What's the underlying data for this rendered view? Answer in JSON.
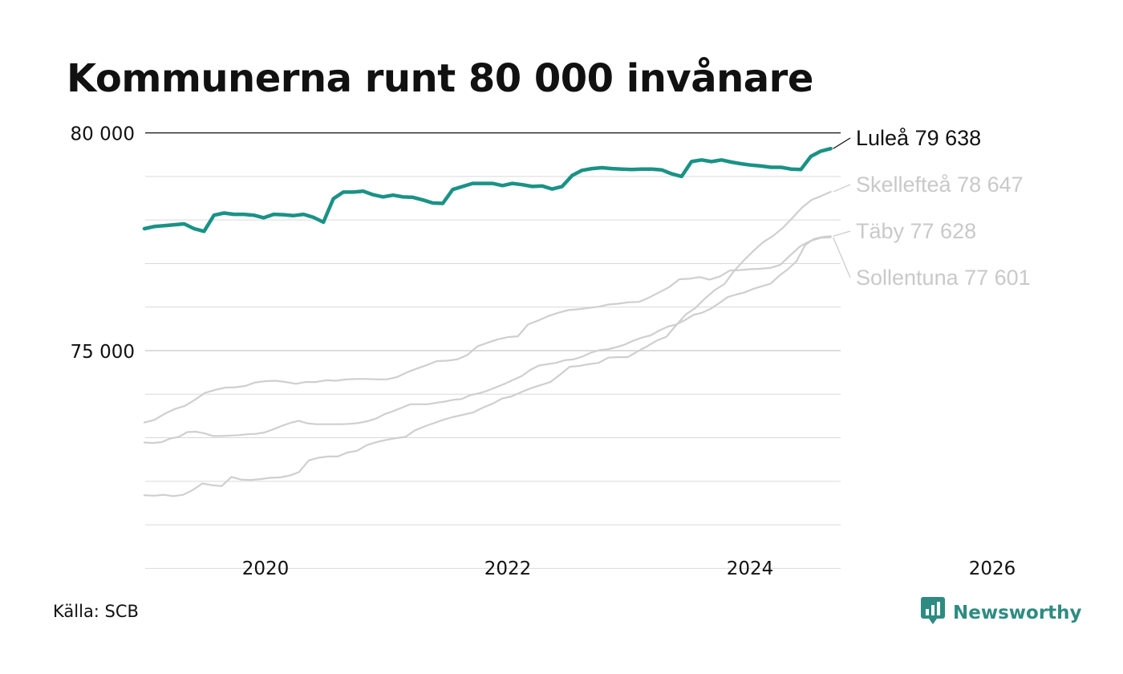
{
  "title": "Kommunerna runt 80 000 invånare",
  "source": "Källa: SCB",
  "brand": {
    "name": "Newsworthy",
    "icon": "newsworthy-logo-icon",
    "color": "#2e8b82"
  },
  "chart_data": {
    "type": "line",
    "title": "Kommunerna runt 80 000 invånare",
    "xlabel": "",
    "ylabel": "",
    "xlim": [
      "2019-01",
      "2026-07"
    ],
    "ylim": [
      70000,
      80000
    ],
    "y_ticks": [
      {
        "value": 75000,
        "label": "75 000"
      },
      {
        "value": 80000,
        "label": "80 000"
      }
    ],
    "x_ticks": [
      {
        "value": "2020-01",
        "label": "2020"
      },
      {
        "value": "2022-01",
        "label": "2022"
      },
      {
        "value": "2024-01",
        "label": "2024"
      },
      {
        "value": "2026-01",
        "label": "2026"
      }
    ],
    "gridlines": [
      71000,
      72000,
      73000,
      74000,
      75000,
      76000,
      77000,
      78000,
      79000,
      80000
    ],
    "legend": "right end labels",
    "start": "2019-01",
    "series": [
      {
        "name": "Luleå",
        "label": "Luleå 79 638",
        "color": "#1a9286",
        "highlight": true,
        "values": [
          77800,
          77850,
          77870,
          77890,
          77910,
          77800,
          77740,
          78110,
          78160,
          78130,
          78130,
          78110,
          78050,
          78130,
          78120,
          78100,
          78130,
          78060,
          77950,
          78490,
          78640,
          78640,
          78660,
          78580,
          78530,
          78570,
          78530,
          78520,
          78460,
          78390,
          78380,
          78700,
          78770,
          78840,
          78840,
          78840,
          78790,
          78840,
          78810,
          78770,
          78780,
          78710,
          78770,
          79020,
          79140,
          79180,
          79200,
          79180,
          79170,
          79160,
          79170,
          79170,
          79150,
          79060,
          79000,
          79340,
          79380,
          79340,
          79380,
          79330,
          79290,
          79260,
          79240,
          79210,
          79210,
          79170,
          79160,
          79460,
          79580,
          79638
        ]
      },
      {
        "name": "Skellefteå",
        "label": "Skellefteå 78 647",
        "color": "#cfcfcf",
        "values": [
          71680,
          71670,
          71690,
          71660,
          71690,
          71800,
          71950,
          71910,
          71890,
          72100,
          72040,
          72030,
          72050,
          72080,
          72090,
          72130,
          72210,
          72480,
          72540,
          72570,
          72570,
          72660,
          72700,
          72830,
          72900,
          72950,
          72990,
          73020,
          73170,
          73260,
          73340,
          73420,
          73480,
          73530,
          73580,
          73690,
          73780,
          73900,
          73950,
          74050,
          74140,
          74210,
          74280,
          74450,
          74630,
          74650,
          74690,
          74720,
          74840,
          74850,
          74850,
          74980,
          75100,
          75230,
          75320,
          75580,
          75830,
          75980,
          76200,
          76390,
          76530,
          76830,
          77070,
          77290,
          77490,
          77630,
          77810,
          78040,
          78280,
          78460,
          78550,
          78647
        ]
      },
      {
        "name": "Täby",
        "label": "Täby 77 628",
        "color": "#cfcfcf",
        "values": [
          72890,
          72880,
          72900,
          72980,
          73020,
          73130,
          73140,
          73100,
          73040,
          73040,
          73050,
          73060,
          73080,
          73090,
          73120,
          73190,
          73270,
          73340,
          73390,
          73330,
          73310,
          73310,
          73310,
          73310,
          73320,
          73340,
          73380,
          73440,
          73540,
          73610,
          73690,
          73770,
          73770,
          73770,
          73800,
          73830,
          73870,
          73890,
          73980,
          74020,
          74080,
          74160,
          74240,
          74330,
          74420,
          74560,
          74660,
          74690,
          74720,
          74780,
          74800,
          74860,
          74950,
          75010,
          75030,
          75080,
          75140,
          75230,
          75300,
          75350,
          75460,
          75550,
          75600,
          75700,
          75820,
          75870,
          75960,
          76090,
          76230,
          76290,
          76340,
          76420,
          76480,
          76540,
          76720,
          76870,
          77050,
          77420,
          77560,
          77610,
          77628
        ]
      },
      {
        "name": "Sollentuna",
        "label": "Sollentuna 77 601",
        "color": "#cfcfcf",
        "values": [
          73350,
          73410,
          73550,
          73660,
          73730,
          73870,
          74030,
          74100,
          74150,
          74160,
          74190,
          74270,
          74300,
          74310,
          74280,
          74240,
          74280,
          74280,
          74320,
          74310,
          74340,
          74350,
          74350,
          74340,
          74340,
          74390,
          74500,
          74590,
          74670,
          74760,
          74770,
          74800,
          74900,
          75100,
          75180,
          75260,
          75310,
          75330,
          75600,
          75690,
          75790,
          75870,
          75930,
          75950,
          75980,
          76010,
          76060,
          76080,
          76110,
          76120,
          76220,
          76340,
          76460,
          76640,
          76650,
          76690,
          76630,
          76700,
          76840,
          76850,
          76870,
          76880,
          76900,
          76970,
          77190,
          77400,
          77520,
          77590,
          77601
        ]
      }
    ]
  }
}
